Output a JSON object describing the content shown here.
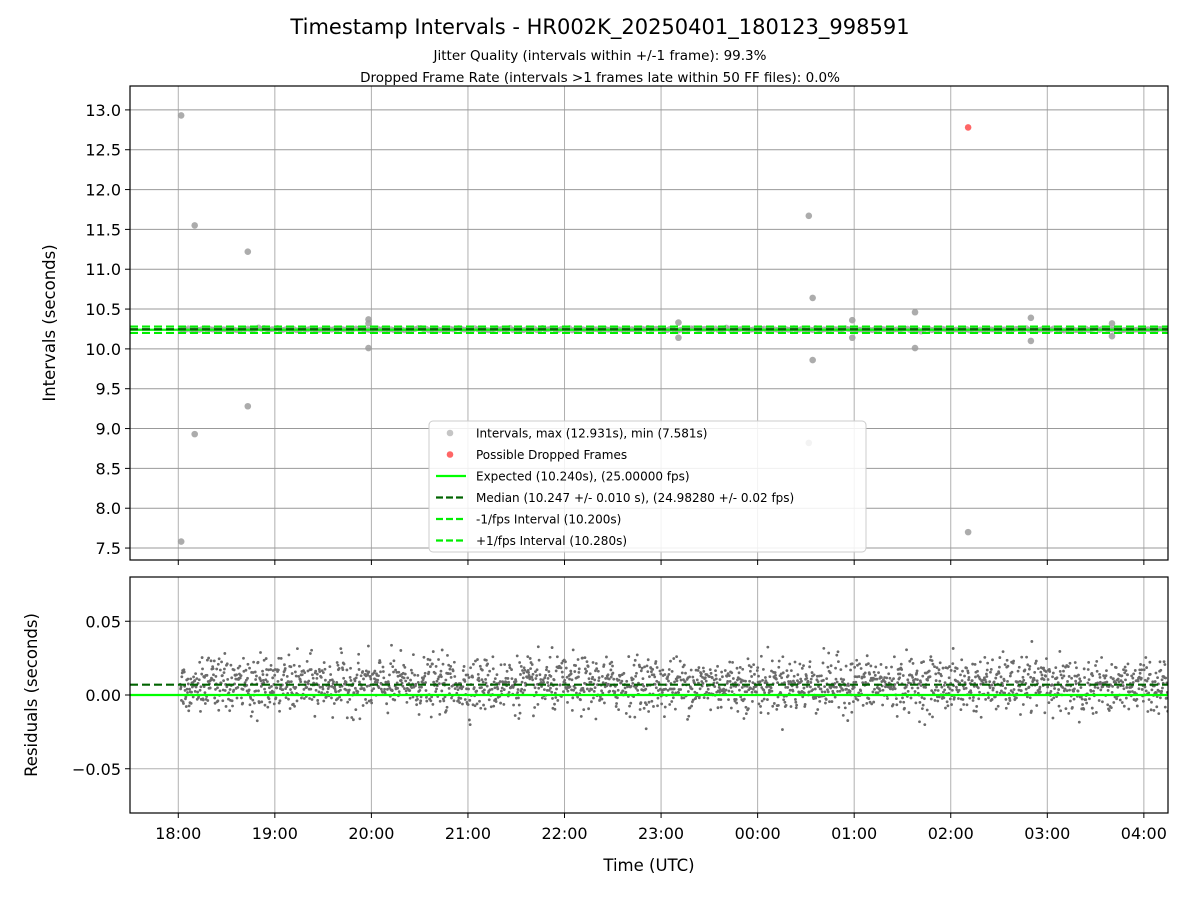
{
  "figure": {
    "title": "Timestamp Intervals - HR002K_20250401_180123_998591",
    "subtitle_lines": [
      "Jitter Quality (intervals within +/-1 frame): 99.3%",
      "Dropped Frame Rate (intervals >1 frames late within 50 FF files): 0.0%"
    ]
  },
  "colors": {
    "expected": "#00ff00",
    "median": "#006400",
    "fps_bounds": "#00ee00",
    "interval_points": "#9e9e9e",
    "dropped_points": "#ff0000",
    "residual_points": "#6b6b6b",
    "grid": "#b0b0b0"
  },
  "chart_data": [
    {
      "type": "scatter",
      "panel": "intervals",
      "ylabel": "Intervals (seconds)",
      "xlabel": "",
      "ylim": [
        7.35,
        13.3
      ],
      "xlim_hours": [
        17.5,
        28.25
      ],
      "grid": true,
      "legend_position": "lower-center",
      "x_ticks": [
        {
          "label": "18:00",
          "hour": 18
        },
        {
          "label": "19:00",
          "hour": 19
        },
        {
          "label": "20:00",
          "hour": 20
        },
        {
          "label": "21:00",
          "hour": 21
        },
        {
          "label": "22:00",
          "hour": 22
        },
        {
          "label": "23:00",
          "hour": 23
        },
        {
          "label": "00:00",
          "hour": 24
        },
        {
          "label": "01:00",
          "hour": 25
        },
        {
          "label": "02:00",
          "hour": 26
        },
        {
          "label": "03:00",
          "hour": 27
        },
        {
          "label": "04:00",
          "hour": 28
        }
      ],
      "y_ticks": [
        7.5,
        8.0,
        8.5,
        9.0,
        9.5,
        10.0,
        10.5,
        11.0,
        11.5,
        12.0,
        12.5,
        13.0
      ],
      "y_tick_labels": [
        "7.5",
        "8.0",
        "8.5",
        "9.0",
        "9.5",
        "10.0",
        "10.5",
        "11.0",
        "11.5",
        "12.0",
        "12.5",
        "13.0"
      ],
      "reference_lines": {
        "expected": 10.24,
        "median": 10.247,
        "minus_one_fps": 10.2,
        "plus_one_fps": 10.28
      },
      "dense_band": {
        "center": 10.245,
        "start_hour": 18.02,
        "end_hour": 28.25
      },
      "outliers": [
        {
          "hour": 18.03,
          "y": 12.931
        },
        {
          "hour": 18.03,
          "y": 7.581
        },
        {
          "hour": 18.17,
          "y": 11.55
        },
        {
          "hour": 18.17,
          "y": 8.93
        },
        {
          "hour": 18.72,
          "y": 11.22
        },
        {
          "hour": 18.72,
          "y": 9.28
        },
        {
          "hour": 19.97,
          "y": 10.37
        },
        {
          "hour": 19.97,
          "y": 10.32
        },
        {
          "hour": 19.97,
          "y": 10.01
        },
        {
          "hour": 23.18,
          "y": 10.33
        },
        {
          "hour": 23.18,
          "y": 10.14
        },
        {
          "hour": 24.53,
          "y": 11.67
        },
        {
          "hour": 24.53,
          "y": 8.82
        },
        {
          "hour": 24.57,
          "y": 10.64
        },
        {
          "hour": 24.57,
          "y": 9.86
        },
        {
          "hour": 24.98,
          "y": 10.36
        },
        {
          "hour": 24.98,
          "y": 10.14
        },
        {
          "hour": 25.63,
          "y": 10.46
        },
        {
          "hour": 25.63,
          "y": 10.01
        },
        {
          "hour": 26.18,
          "y": 7.7
        },
        {
          "hour": 26.83,
          "y": 10.39
        },
        {
          "hour": 26.83,
          "y": 10.1
        },
        {
          "hour": 27.67,
          "y": 10.32
        },
        {
          "hour": 27.67,
          "y": 10.16
        }
      ],
      "dropped_frames": [
        {
          "hour": 26.18,
          "y": 12.78
        }
      ],
      "series": [
        {
          "name": "Intervals, max (12.931s), min (7.581s)",
          "marker": "dot",
          "color_key": "interval_points"
        },
        {
          "name": "Possible Dropped Frames",
          "marker": "dot",
          "color_key": "dropped_points"
        },
        {
          "name": "Expected (10.240s), (25.00000 fps)",
          "marker": "solid",
          "color_key": "expected"
        },
        {
          "name": "Median (10.247 +/- 0.010 s), (24.98280 +/- 0.02 fps)",
          "marker": "dashed",
          "color_key": "median"
        },
        {
          "name": "-1/fps Interval (10.200s)",
          "marker": "dashed",
          "color_key": "fps_bounds"
        },
        {
          "name": "+1/fps Interval (10.280s)",
          "marker": "dashed",
          "color_key": "fps_bounds"
        }
      ]
    },
    {
      "type": "scatter",
      "panel": "residuals",
      "ylabel": "Residuals (seconds)",
      "xlabel": "Time (UTC)",
      "ylim": [
        -0.08,
        0.08
      ],
      "xlim_hours": [
        17.5,
        28.25
      ],
      "grid": true,
      "y_ticks": [
        -0.05,
        0.0,
        0.05
      ],
      "y_tick_labels": [
        "−0.05",
        "0.00",
        "0.05"
      ],
      "reference_lines": {
        "zero": 0.0,
        "median_offset": 0.007
      },
      "residual_distribution": {
        "center": 0.007,
        "spread": 0.009,
        "min": -0.025,
        "max": 0.038,
        "start_hour": 18.02,
        "end_hour": 28.25
      }
    }
  ]
}
